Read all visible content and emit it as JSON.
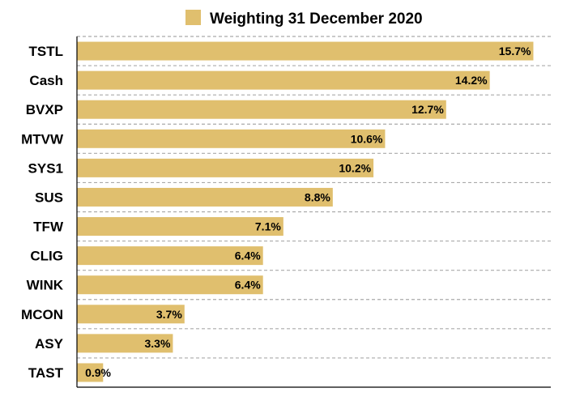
{
  "chart_data": {
    "type": "bar",
    "orientation": "horizontal",
    "series": [
      {
        "name": "Weighting 31 December 2020",
        "values": [
          15.7,
          14.2,
          12.7,
          10.6,
          10.2,
          8.8,
          7.1,
          6.4,
          6.4,
          3.7,
          3.3,
          0.9
        ]
      }
    ],
    "categories": [
      "TSTL",
      "Cash",
      "BVXP",
      "MTVW",
      "SYS1",
      "SUS",
      "TFW",
      "CLIG",
      "WINK",
      "MCON",
      "ASY",
      "TAST"
    ],
    "data_labels": [
      "15.7%",
      "14.2%",
      "12.7%",
      "10.6%",
      "10.2%",
      "8.8%",
      "7.1%",
      "6.4%",
      "6.4%",
      "3.7%",
      "3.3%",
      "0.9%"
    ],
    "xlim": [
      0,
      16.3
    ],
    "grid": "horizontal dashed",
    "legend_position": "top",
    "colors": {
      "bar": "#e0bf6e",
      "grid": "#aaaaaa",
      "axis": "#000000"
    }
  }
}
